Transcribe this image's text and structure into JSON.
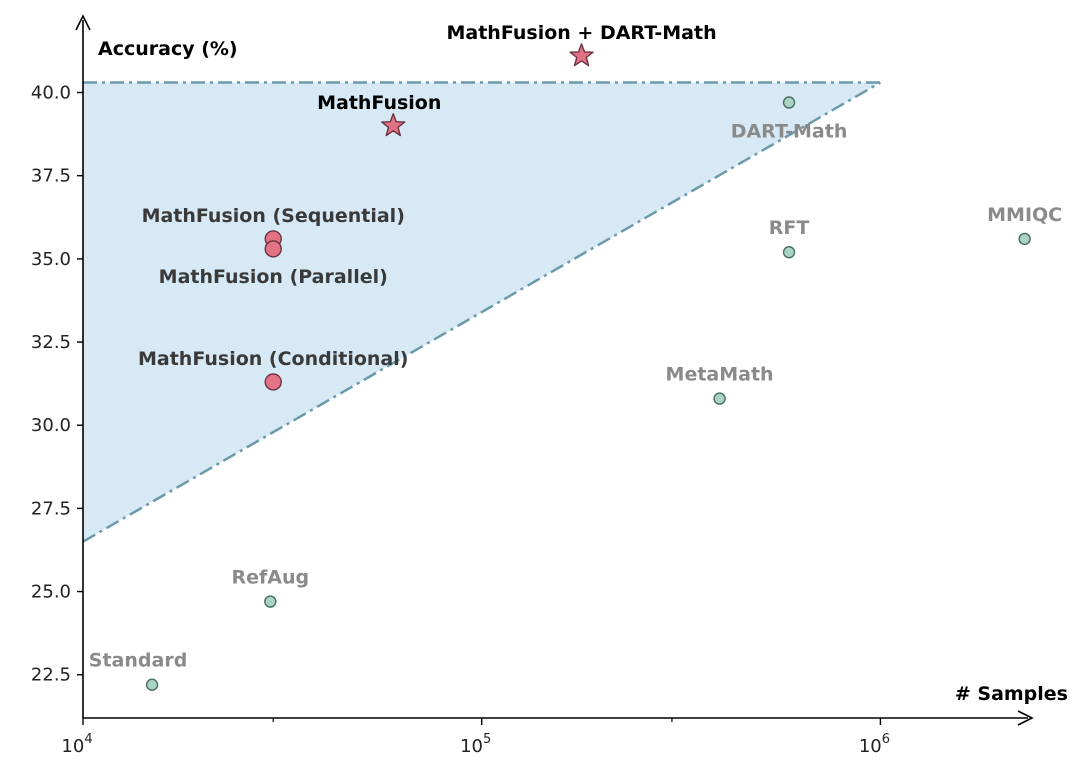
{
  "chart_data": {
    "type": "scatter",
    "title": "",
    "xlabel": "# Samples",
    "ylabel": "Accuracy (%)",
    "x_scale": "log",
    "xlim": [
      10000,
      2400000
    ],
    "ylim": [
      21.2,
      42.3
    ],
    "y_ticks": [
      22.5,
      25.0,
      27.5,
      30.0,
      32.5,
      35.0,
      37.5,
      40.0
    ],
    "y_tick_labels": [
      "22.5",
      "25.0",
      "27.5",
      "30.0",
      "32.5",
      "35.0",
      "37.5",
      "40.0"
    ],
    "x_ticks": [
      {
        "value": 10000,
        "base": "10",
        "exp": "4"
      },
      {
        "value": 100000,
        "base": "10",
        "exp": "5"
      },
      {
        "value": 1000000,
        "base": "10",
        "exp": "6"
      }
    ],
    "x_minor_ticks": [
      30000,
      300000
    ],
    "grid": false,
    "colors": {
      "baseline_fill": "#a9d3c4",
      "baseline_edge": "#4a6d5e",
      "baseline_text": "#8a8a8a",
      "mathfusion_fill": "#e27386",
      "mathfusion_edge": "#6b3340",
      "mathfusion_text": "#3a3a3a",
      "star_text": "#000000",
      "region_fill": "#d7e9f5",
      "region_line": "#6b9aaa"
    },
    "shaded_region": {
      "vertices": [
        [
          10000,
          40.3
        ],
        [
          1000000,
          40.3
        ],
        [
          10000,
          26.5
        ]
      ]
    },
    "baselines": [
      {
        "label": "Standard",
        "x": 14900,
        "y": 22.2
      },
      {
        "label": "RefAug",
        "x": 29500,
        "y": 24.7
      },
      {
        "label": "MetaMath",
        "x": 395000,
        "y": 30.8
      },
      {
        "label": "RFT",
        "x": 590000,
        "y": 35.2
      },
      {
        "label": "DART-Math",
        "x": 590000,
        "y": 39.7
      },
      {
        "label": "MMIQC",
        "x": 2300000,
        "y": 35.6
      }
    ],
    "mathfusion_points": [
      {
        "label": "MathFusion (Sequential)",
        "x": 30000,
        "y": 35.6
      },
      {
        "label": "MathFusion (Parallel)",
        "x": 30000,
        "y": 35.3
      },
      {
        "label": "MathFusion (Conditional)",
        "x": 30000,
        "y": 31.3
      }
    ],
    "star_points": [
      {
        "label": "MathFusion",
        "x": 60000,
        "y": 39.0
      },
      {
        "label": "MathFusion + DART-Math",
        "x": 178000,
        "y": 41.1
      }
    ]
  }
}
